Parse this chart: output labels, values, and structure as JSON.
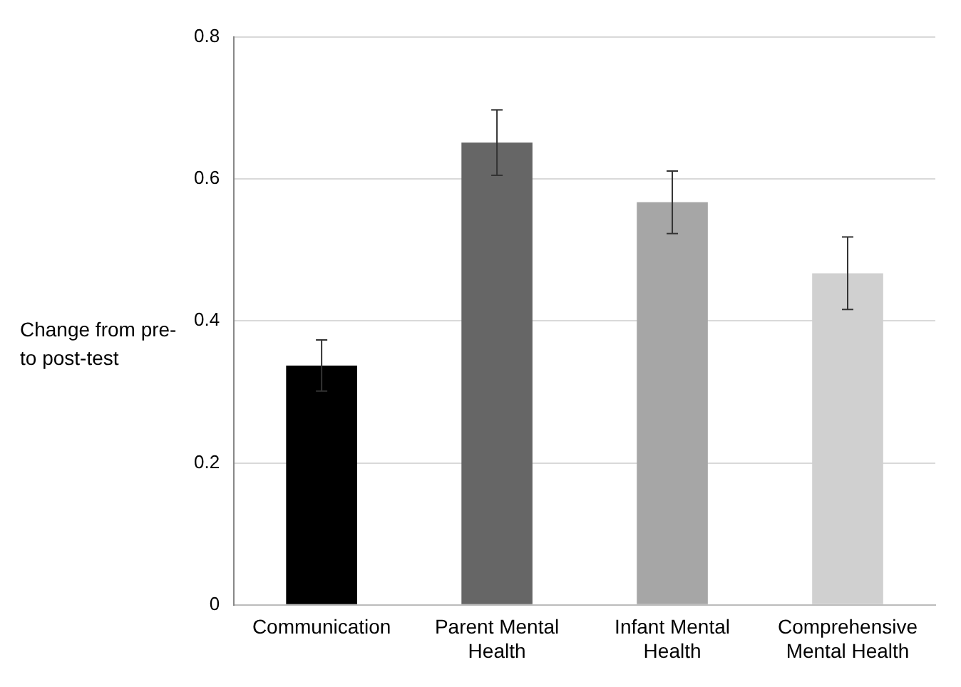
{
  "chart_data": {
    "type": "bar",
    "ylabel": "Change from pre- to post-test",
    "categories": [
      "Communication",
      "Parent Mental Health",
      "Infant Mental Health",
      "Comprehensive Mental Health"
    ],
    "values": [
      0.337,
      0.651,
      0.567,
      0.467
    ],
    "colors": [
      "#000000",
      "#666666",
      "#a6a6a6",
      "#d0d0d0"
    ],
    "errors": [
      0.036,
      0.046,
      0.044,
      0.051
    ],
    "ylim": [
      0,
      0.8
    ],
    "yticks": [
      0,
      0.2,
      0.4,
      0.6,
      0.8
    ],
    "grid": "y",
    "legend": false
  }
}
